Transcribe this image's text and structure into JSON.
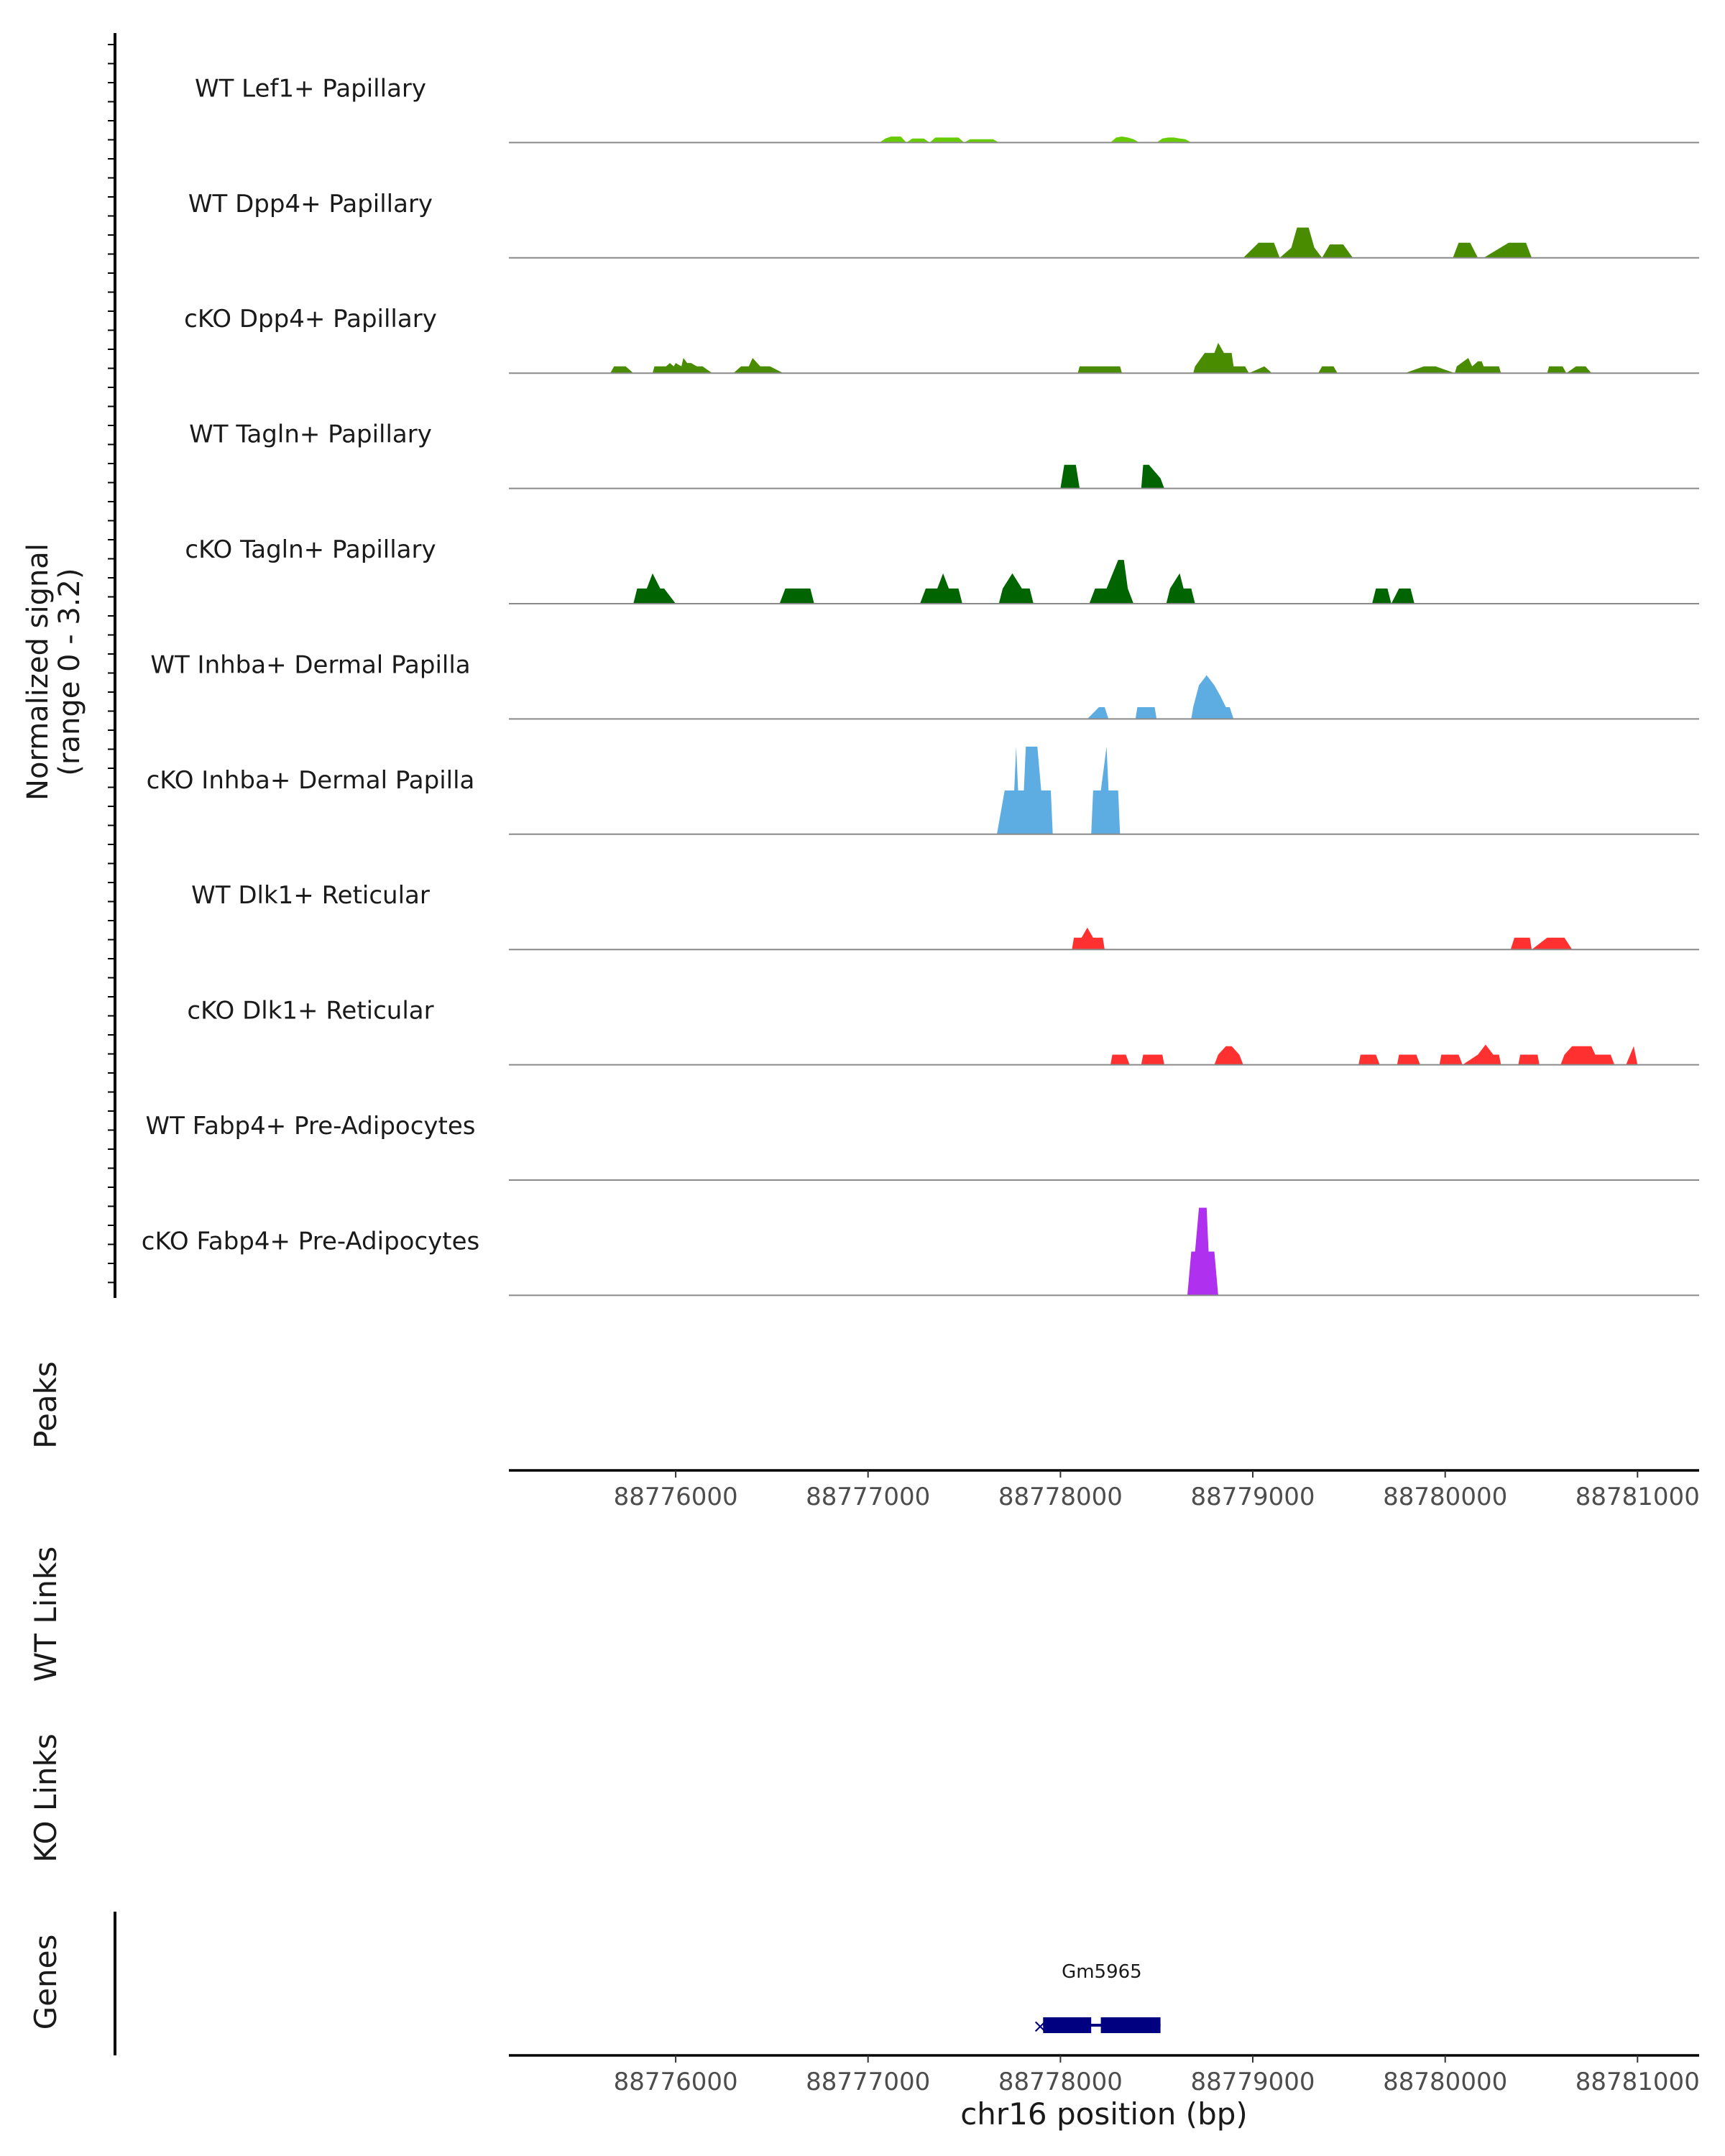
{
  "chart_data": {
    "type": "area",
    "region": "chr16",
    "xlim": [
      88775133,
      88781320
    ],
    "y_axis_title": "Normalized signal",
    "y_axis_range": "(range 0 - 3.2)",
    "ylim": [
      0,
      3.2
    ],
    "x_ticks": [
      88776000,
      88777000,
      88778000,
      88779000,
      88780000,
      88781000
    ],
    "x_tick_labels": [
      "88776000",
      "88777000",
      "88778000",
      "88779000",
      "88780000",
      "88781000"
    ],
    "xlabel": "chr16 position (bp)",
    "panel_labels": {
      "peaks": "Peaks",
      "wt_links": "WT Links",
      "ko_links": "KO Links",
      "genes": "Genes"
    },
    "tracks": [
      {
        "name": "WT Lef1+ Papillary",
        "color": "#66cc00",
        "x": [
          88777060,
          88777090,
          88777120,
          88777170,
          88777200,
          88777230,
          88777260,
          88777290,
          88777320,
          88777350,
          88777380,
          88777410,
          88777440,
          88777470,
          88777500,
          88777530,
          88777560,
          88777590,
          88777620,
          88777650,
          88777680,
          88778260,
          88778290,
          88778320,
          88778350,
          88778380,
          88778410,
          88778440,
          88778470,
          88778500,
          88778530,
          88778560,
          88778590,
          88778620,
          88778650,
          88778680
        ],
        "y": [
          0,
          0.12,
          0.18,
          0.18,
          0,
          0.12,
          0.12,
          0.12,
          0,
          0.15,
          0.15,
          0.15,
          0.15,
          0.15,
          0,
          0.1,
          0.1,
          0.1,
          0.1,
          0.1,
          0,
          0,
          0.15,
          0.18,
          0.15,
          0.1,
          0,
          0,
          0,
          0,
          0.12,
          0.15,
          0.15,
          0.12,
          0.1,
          0
        ]
      },
      {
        "name": "WT Dpp4+ Papillary",
        "color": "#4a8c00",
        "x": [
          88778950,
          88779030,
          88779110,
          88779140,
          88779200,
          88779230,
          88779290,
          88779320,
          88779360,
          88779400,
          88779470,
          88779520,
          88779540,
          88780040,
          88780070,
          88780130,
          88780170,
          88780200,
          88780330,
          88780350,
          88780420,
          88780450
        ],
        "y": [
          0,
          0.45,
          0.45,
          0,
          0.3,
          0.9,
          0.9,
          0.3,
          0,
          0.4,
          0.4,
          0,
          0,
          0,
          0.45,
          0.45,
          0,
          0,
          0.45,
          0.45,
          0.45,
          0
        ]
      },
      {
        "name": "cKO Dpp4+ Papillary",
        "color": "#4a8c00",
        "x": [
          88775660,
          88775680,
          88775740,
          88775780,
          88775880,
          88775890,
          88775950,
          88775970,
          88775990,
          88776000,
          88776030,
          88776040,
          88776060,
          88776080,
          88776110,
          88776140,
          88776190,
          88776300,
          88776340,
          88776380,
          88776400,
          88776440,
          88776460,
          88776490,
          88776560,
          88778090,
          88778100,
          88778170,
          88778200,
          88778310,
          88778320,
          88778690,
          88778700,
          88778750,
          88778800,
          88778820,
          88778850,
          88778890,
          88778900,
          88778960,
          88778980,
          88779060,
          88779100,
          88779340,
          88779360,
          88779420,
          88779440,
          88779790,
          88779840,
          88779890,
          88779950,
          88780050,
          88780060,
          88780120,
          88780140,
          88780170,
          88780190,
          88780200,
          88780240,
          88780280,
          88780290,
          88780530,
          88780540,
          88780610,
          88780630,
          88780680,
          88780730,
          88780760
        ],
        "y": [
          0,
          0.2,
          0.2,
          0,
          0,
          0.2,
          0.2,
          0.3,
          0.2,
          0.3,
          0.2,
          0.45,
          0.3,
          0.3,
          0.2,
          0.2,
          0,
          0,
          0.2,
          0.2,
          0.45,
          0.2,
          0.2,
          0.2,
          0,
          0,
          0.2,
          0.2,
          0.2,
          0.2,
          0,
          0,
          0.2,
          0.6,
          0.6,
          0.9,
          0.6,
          0.6,
          0.2,
          0.2,
          0,
          0.2,
          0,
          0,
          0.2,
          0.2,
          0,
          0,
          0.1,
          0.2,
          0.2,
          0,
          0.2,
          0.45,
          0.2,
          0.35,
          0.35,
          0.2,
          0.2,
          0.2,
          0,
          0,
          0.2,
          0.2,
          0,
          0.2,
          0.2,
          0
        ]
      },
      {
        "name": "WT Tagln+ Papillary",
        "color": "#006400",
        "x": [
          88778000,
          88778020,
          88778080,
          88778100,
          88778420,
          88778430,
          88778460,
          88778520,
          88778540
        ],
        "y": [
          0,
          0.7,
          0.7,
          0,
          0,
          0.7,
          0.7,
          0.3,
          0
        ]
      },
      {
        "name": "cKO Tagln+ Papillary",
        "color": "#006400",
        "x": [
          88775780,
          88775800,
          88775850,
          88775880,
          88775920,
          88775940,
          88776000,
          88776540,
          88776570,
          88776620,
          88776650,
          88776700,
          88776720,
          88777270,
          88777300,
          88777360,
          88777390,
          88777420,
          88777470,
          88777490,
          88777680,
          88777700,
          88777750,
          88777800,
          88777840,
          88777860,
          88778150,
          88778180,
          88778240,
          88778300,
          88778330,
          88778350,
          88778380,
          88778550,
          88778570,
          88778620,
          88778640,
          88778680,
          88778700,
          88779620,
          88779640,
          88779700,
          88779720,
          88779760,
          88779820,
          88779840
        ],
        "y": [
          0,
          0.45,
          0.45,
          0.9,
          0.45,
          0.45,
          0,
          0,
          0.45,
          0.45,
          0.45,
          0.45,
          0,
          0,
          0.45,
          0.45,
          0.9,
          0.45,
          0.45,
          0,
          0,
          0.45,
          0.9,
          0.45,
          0.45,
          0,
          0,
          0.45,
          0.45,
          1.3,
          1.3,
          0.45,
          0,
          0,
          0.45,
          0.9,
          0.45,
          0.45,
          0,
          0,
          0.45,
          0.45,
          0,
          0.45,
          0.45,
          0
        ]
      },
      {
        "name": "WT Inhba+ Dermal Papilla",
        "color": "#5dade2",
        "x": [
          88778140,
          88778200,
          88778230,
          88778250,
          88778390,
          88778400,
          88778490,
          88778500,
          88778680,
          88778690,
          88778720,
          88778760,
          88778800,
          88778830,
          88778860,
          88778880,
          88778900
        ],
        "y": [
          0,
          0.35,
          0.35,
          0,
          0,
          0.35,
          0.35,
          0,
          0,
          0.35,
          1.0,
          1.3,
          1.0,
          0.7,
          0.35,
          0.35,
          0
        ]
      },
      {
        "name": "cKO Inhba+ Dermal Papilla",
        "color": "#5dade2",
        "x": [
          88777670,
          88777710,
          88777760,
          88777770,
          88777780,
          88777810,
          88777820,
          88777880,
          88777900,
          88777950,
          88777960,
          88778160,
          88778170,
          88778210,
          88778240,
          88778250,
          88778300,
          88778310
        ],
        "y": [
          0,
          1.3,
          1.3,
          2.6,
          1.3,
          1.3,
          2.6,
          2.6,
          1.3,
          1.3,
          0,
          0,
          1.3,
          1.3,
          2.6,
          1.3,
          1.3,
          0
        ]
      },
      {
        "name": "WT Dlk1+ Reticular",
        "color": "#ff3030",
        "x": [
          88778060,
          88778070,
          88778110,
          88778140,
          88778170,
          88778220,
          88778230,
          88780340,
          88780360,
          88780440,
          88780450,
          88780530,
          88780560,
          88780620,
          88780660
        ],
        "y": [
          0,
          0.35,
          0.35,
          0.65,
          0.35,
          0.35,
          0,
          0,
          0.35,
          0.35,
          0,
          0.35,
          0.35,
          0.35,
          0
        ]
      },
      {
        "name": "cKO Dlk1+ Reticular",
        "color": "#ff3030",
        "x": [
          88778260,
          88778270,
          88778340,
          88778360,
          88778420,
          88778430,
          88778530,
          88778540,
          88778800,
          88778820,
          88778860,
          88778890,
          88778930,
          88778950,
          88779550,
          88779560,
          88779640,
          88779660,
          88779750,
          88779760,
          88779850,
          88779870,
          88779970,
          88779980,
          88780070,
          88780090,
          88780170,
          88780210,
          88780250,
          88780280,
          88780290,
          88780380,
          88780390,
          88780480,
          88780490,
          88780600,
          88780620,
          88780660,
          88780760,
          88780780,
          88780860,
          88780880,
          88780940,
          88780980,
          88781000
        ],
        "y": [
          0,
          0.3,
          0.3,
          0,
          0,
          0.3,
          0.3,
          0,
          0,
          0.3,
          0.55,
          0.55,
          0.3,
          0,
          0,
          0.3,
          0.3,
          0,
          0,
          0.3,
          0.3,
          0,
          0,
          0.3,
          0.3,
          0,
          0.3,
          0.6,
          0.3,
          0.3,
          0,
          0,
          0.3,
          0.3,
          0,
          0,
          0.3,
          0.55,
          0.55,
          0.3,
          0.3,
          0,
          0,
          0.55,
          0
        ]
      },
      {
        "name": "WT Fabp4+ Pre-Adipocytes",
        "color": "#a020f0",
        "x": [],
        "y": []
      },
      {
        "name": "cKO Fabp4+ Pre-Adipocytes",
        "color": "#b030f0",
        "x": [
          88778660,
          88778680,
          88778700,
          88778720,
          88778760,
          88778770,
          88778800,
          88778820
        ],
        "y": [
          0,
          1.3,
          1.3,
          2.6,
          2.6,
          1.3,
          1.3,
          0
        ]
      }
    ],
    "gene": {
      "name": "Gm5965",
      "color": "#000080",
      "strand_symbol": "×",
      "start": 88777910,
      "end": 88778520,
      "exons": [
        [
          88777910,
          88778160
        ],
        [
          88778210,
          88778520
        ]
      ]
    }
  }
}
